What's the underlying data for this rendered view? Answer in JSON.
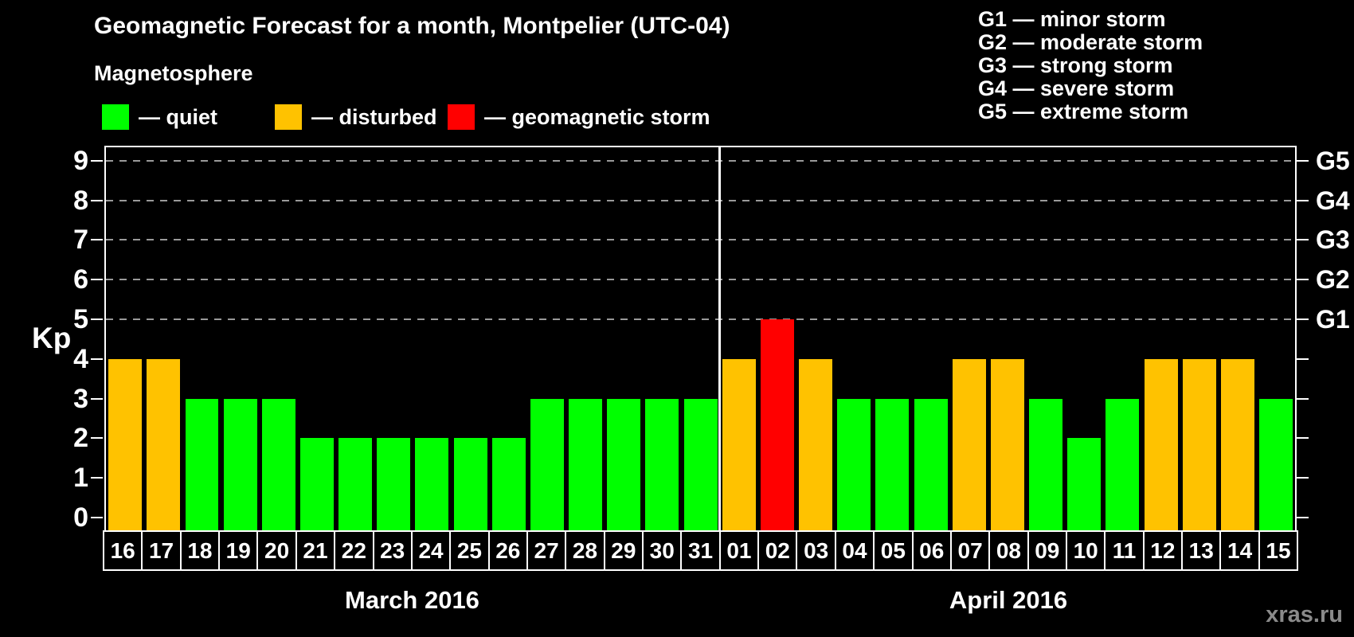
{
  "title": "Geomagnetic Forecast for a month, Montpelier (UTC-04)",
  "subtitle": "Magnetosphere",
  "legend": {
    "items": [
      {
        "label": "— quiet",
        "status": "quiet"
      },
      {
        "label": "— disturbed",
        "status": "disturbed"
      },
      {
        "label": "— geomagnetic storm",
        "status": "storm"
      }
    ]
  },
  "g_scale_legend": [
    "G1 — minor storm",
    "G2 — moderate storm",
    "G3 — strong storm",
    "G4 — severe storm",
    "G5 — extreme storm"
  ],
  "colors": {
    "quiet": "#00FF00",
    "disturbed": "#FFC200",
    "storm": "#FF0000",
    "background": "#000000",
    "grid": "#9A9A9A",
    "axis": "#FFFFFF",
    "watermark": "#8A8A8A"
  },
  "chart_data": {
    "type": "bar",
    "ylabel": "Kp",
    "ylim": [
      0,
      9
    ],
    "yticks": [
      0,
      1,
      2,
      3,
      4,
      5,
      6,
      7,
      8,
      9
    ],
    "grid_levels": [
      5,
      6,
      7,
      8,
      9
    ],
    "right_axis_labels": [
      {
        "kp": 5,
        "label": "G1"
      },
      {
        "kp": 6,
        "label": "G2"
      },
      {
        "kp": 7,
        "label": "G3"
      },
      {
        "kp": 8,
        "label": "G4"
      },
      {
        "kp": 9,
        "label": "G5"
      }
    ],
    "thresholds": {
      "disturbed_at": 4,
      "storm_at": 5
    },
    "sections": [
      {
        "month": "March 2016",
        "days": [
          "16",
          "17",
          "18",
          "19",
          "20",
          "21",
          "22",
          "23",
          "24",
          "25",
          "26",
          "27",
          "28",
          "29",
          "30",
          "31"
        ],
        "values": [
          4,
          4,
          3,
          3,
          3,
          2,
          2,
          2,
          2,
          2,
          2,
          3,
          3,
          3,
          3,
          3
        ]
      },
      {
        "month": "April 2016",
        "days": [
          "01",
          "02",
          "03",
          "04",
          "05",
          "06",
          "07",
          "08",
          "09",
          "10",
          "11",
          "12",
          "13",
          "14",
          "15"
        ],
        "values": [
          4,
          5,
          4,
          3,
          3,
          3,
          4,
          4,
          3,
          2,
          3,
          4,
          4,
          4,
          3
        ]
      }
    ]
  },
  "watermark": "xras.ru"
}
